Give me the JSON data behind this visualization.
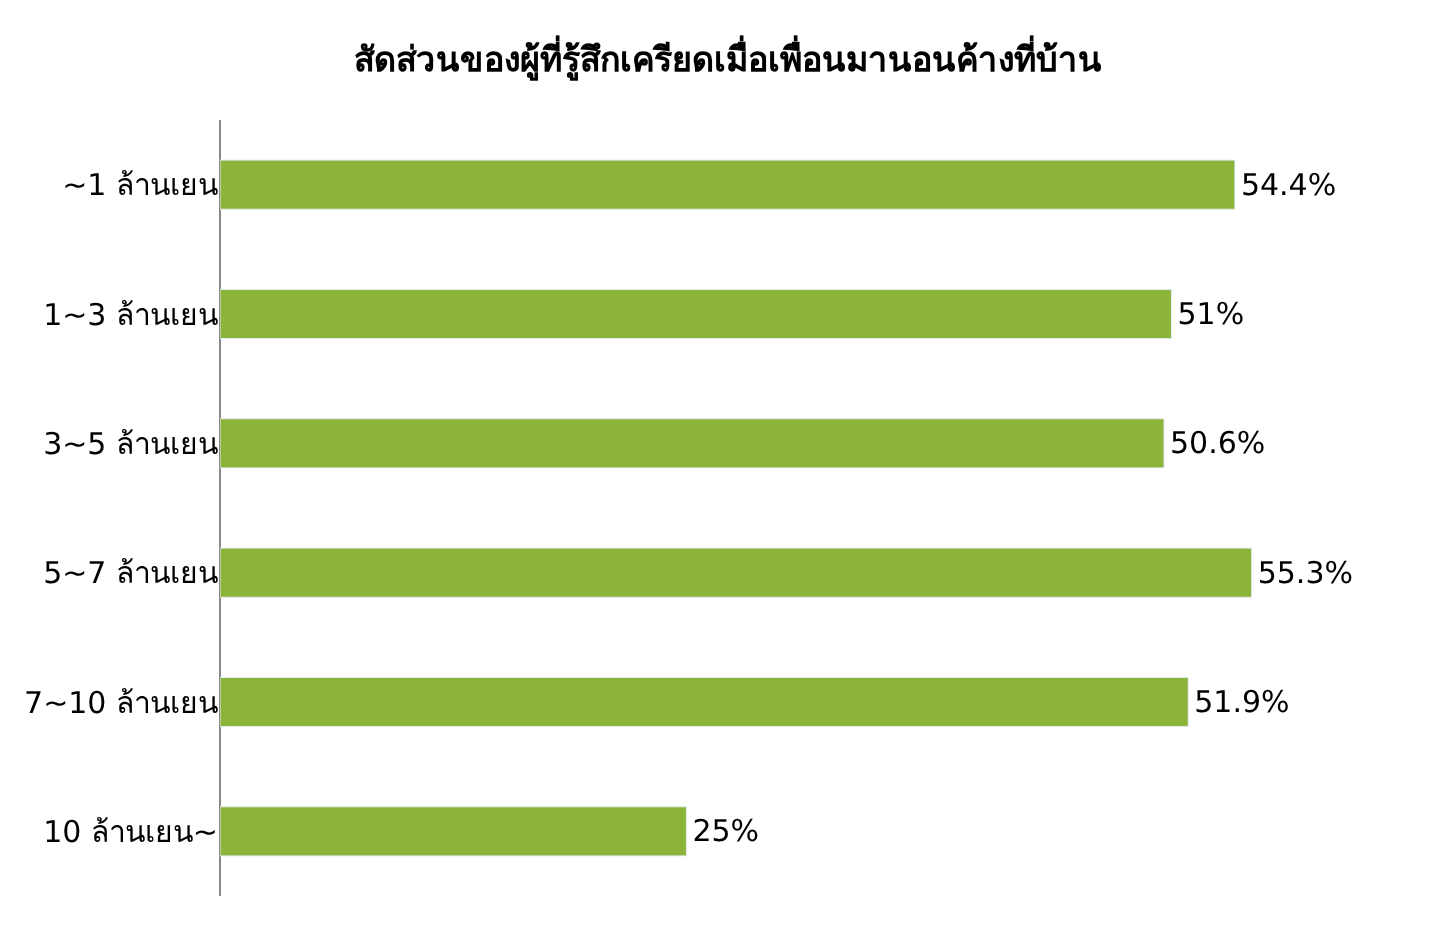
{
  "chart_data": {
    "type": "bar",
    "orientation": "horizontal",
    "title": "สัดส่วนของผู้ที่รู้สึกเครียดเมื่อเพื่อนมานอนค้างที่บ้าน",
    "categories": [
      "~1 ล้านเยน",
      "1~3 ล้านเยน",
      "3~5 ล้านเยน",
      "5~7 ล้านเยน",
      "7~10 ล้านเยน",
      "10 ล้านเยน~"
    ],
    "values": [
      54.4,
      51,
      50.6,
      55.3,
      51.9,
      25
    ],
    "value_labels": [
      "54.4%",
      "51%",
      "50.6%",
      "55.3%",
      "51.9%",
      "25%"
    ],
    "color": "#8cb43a"
  }
}
